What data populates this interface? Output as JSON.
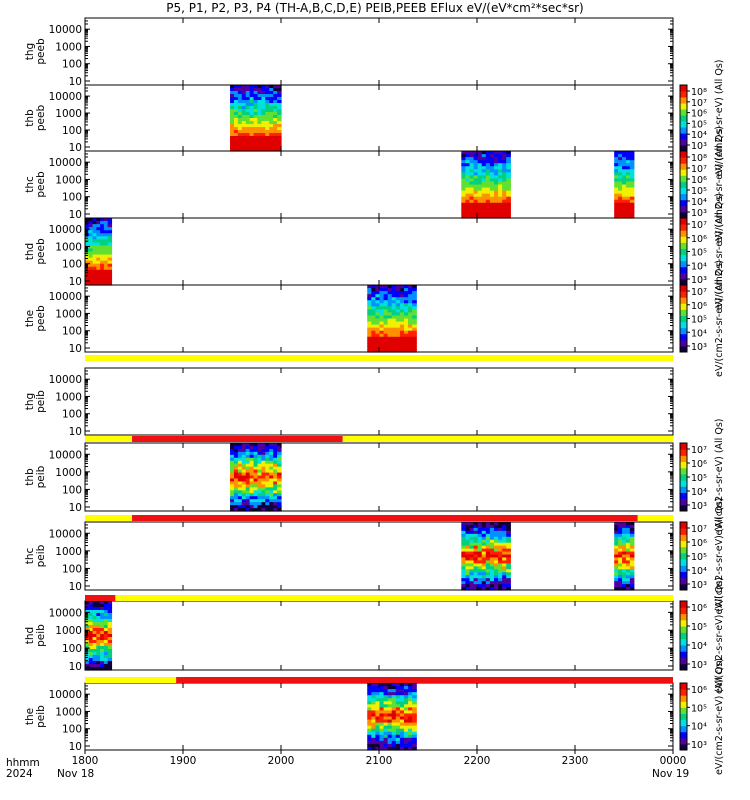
{
  "title": "P5, P1, P2, P3, P4 (TH-A,B,C,D,E) PEIB,PEEB EFlux eV/(eV*cm²*sec*sr)",
  "footer": {
    "left_line1": "hhmm",
    "left_line2": "2024",
    "start_date": "Nov 18",
    "end_date": "Nov 19"
  },
  "colors": {
    "state_yellow": "#ffff00",
    "state_red": "#ee1111",
    "spectrogram_scale": [
      "#10003a",
      "#5000a0",
      "#0000ff",
      "#0090ff",
      "#00e0e0",
      "#00d080",
      "#60e030",
      "#f0f000",
      "#ff9000",
      "#ff2000",
      "#e00000"
    ]
  },
  "chart_data": {
    "type": "heatmap",
    "x_axis": {
      "ticks": [
        "1800",
        "1900",
        "2000",
        "2100",
        "2200",
        "2300",
        "0000"
      ],
      "range_hours": [
        18.0,
        24.0
      ]
    },
    "y_ticks": [
      "10",
      "100",
      "1000",
      "10000"
    ],
    "panels": [
      {
        "probe": "thg",
        "product": "peeb",
        "label1": "thg",
        "label2": "peeb",
        "has_data": false,
        "colorbar": false,
        "bursts": []
      },
      {
        "probe": "thb",
        "product": "peeb",
        "label1": "thb",
        "label2": "peeb",
        "has_data": true,
        "colorbar": true,
        "cbar_ticks": [
          "10³",
          "10⁴",
          "10⁵",
          "10⁶",
          "10⁷",
          "10⁸"
        ],
        "cbar_title": "eV/(cm2-s-sr-eV) (All Qs)",
        "bursts": [
          {
            "start": 19.48,
            "end": 20.0
          }
        ]
      },
      {
        "probe": "thc",
        "product": "peeb",
        "label1": "thc",
        "label2": "peeb",
        "has_data": true,
        "colorbar": true,
        "cbar_ticks": [
          "10³",
          "10⁴",
          "10⁵",
          "10⁶",
          "10⁷",
          "10⁸"
        ],
        "cbar_title": "eV/(cm2-s-sr-eV) (All Qs)",
        "bursts": [
          {
            "start": 21.84,
            "end": 22.34
          },
          {
            "start": 23.4,
            "end": 23.6
          }
        ]
      },
      {
        "probe": "thd",
        "product": "peeb",
        "label1": "thd",
        "label2": "peeb",
        "has_data": true,
        "colorbar": true,
        "cbar_ticks": [
          "10³",
          "10⁴",
          "10⁵",
          "10⁶",
          "10⁷"
        ],
        "cbar_title": "eV/(cm2-s-sr-eV) (All Qs)",
        "bursts": [
          {
            "start": 18.0,
            "end": 18.27
          }
        ]
      },
      {
        "probe": "the",
        "product": "peeb",
        "label1": "the",
        "label2": "peeb",
        "has_data": true,
        "colorbar": true,
        "cbar_ticks": [
          "10³",
          "10⁴",
          "10⁵",
          "10⁶",
          "10⁷"
        ],
        "cbar_title": "eV/(cm2-s-sr-eV) (All Qs)",
        "bursts": [
          {
            "start": 20.88,
            "end": 21.38
          }
        ]
      },
      {
        "probe": "thg",
        "product": "peib",
        "label1": "thg",
        "label2": "peib",
        "has_data": false,
        "colorbar": false,
        "bursts": []
      },
      {
        "probe": "thb",
        "product": "peib",
        "label1": "thb",
        "label2": "peib",
        "has_data": true,
        "colorbar": true,
        "cbar_ticks": [
          "10³",
          "10⁴",
          "10⁵",
          "10⁶",
          "10⁷"
        ],
        "cbar_title": "eV/(cm2-s-sr-eV) (All Qs)",
        "bursts": [
          {
            "start": 19.48,
            "end": 20.0
          }
        ]
      },
      {
        "probe": "thc",
        "product": "peib",
        "label1": "thc",
        "label2": "peib",
        "has_data": true,
        "colorbar": true,
        "cbar_ticks": [
          "10³",
          "10⁴",
          "10⁵",
          "10⁶",
          "10⁷"
        ],
        "cbar_title": "eV/(cm2-s-sr-eV) (All Qs)",
        "bursts": [
          {
            "start": 21.84,
            "end": 22.34
          },
          {
            "start": 23.4,
            "end": 23.6
          }
        ]
      },
      {
        "probe": "thd",
        "product": "peib",
        "label1": "thd",
        "label2": "peib",
        "has_data": true,
        "colorbar": true,
        "cbar_ticks": [
          "10³",
          "10⁴",
          "10⁵",
          "10⁶"
        ],
        "cbar_title": "eV/(cm2-s-sr-eV) (All Qs)",
        "bursts": [
          {
            "start": 18.0,
            "end": 18.27
          }
        ]
      },
      {
        "probe": "the",
        "product": "peib",
        "label1": "the",
        "label2": "peib",
        "has_data": true,
        "colorbar": true,
        "cbar_ticks": [
          "10³",
          "10⁴",
          "10⁵",
          "10⁶"
        ],
        "cbar_title": "eV/(cm2-s-sr-eV) (All Qs)",
        "bursts": [
          {
            "start": 20.88,
            "end": 21.38
          }
        ]
      }
    ],
    "state_bars": [
      {
        "after_panel": 4,
        "segments": [
          {
            "start": 18.0,
            "end": 24.0,
            "state": "yellow"
          }
        ]
      },
      {
        "after_panel": 5,
        "segments": [
          {
            "start": 18.0,
            "end": 18.48,
            "state": "yellow"
          },
          {
            "start": 18.48,
            "end": 20.63,
            "state": "red"
          },
          {
            "start": 20.63,
            "end": 24.0,
            "state": "yellow"
          }
        ]
      },
      {
        "after_panel": 6,
        "segments": [
          {
            "start": 18.0,
            "end": 18.48,
            "state": "yellow"
          },
          {
            "start": 18.48,
            "end": 23.64,
            "state": "red"
          },
          {
            "start": 23.64,
            "end": 24.0,
            "state": "yellow"
          }
        ]
      },
      {
        "after_panel": 7,
        "segments": [
          {
            "start": 18.0,
            "end": 18.31,
            "state": "red"
          },
          {
            "start": 18.31,
            "end": 24.0,
            "state": "yellow"
          }
        ]
      },
      {
        "after_panel": 8,
        "segments": [
          {
            "start": 18.0,
            "end": 18.93,
            "state": "yellow"
          },
          {
            "start": 18.93,
            "end": 24.0,
            "state": "red"
          }
        ]
      }
    ]
  }
}
